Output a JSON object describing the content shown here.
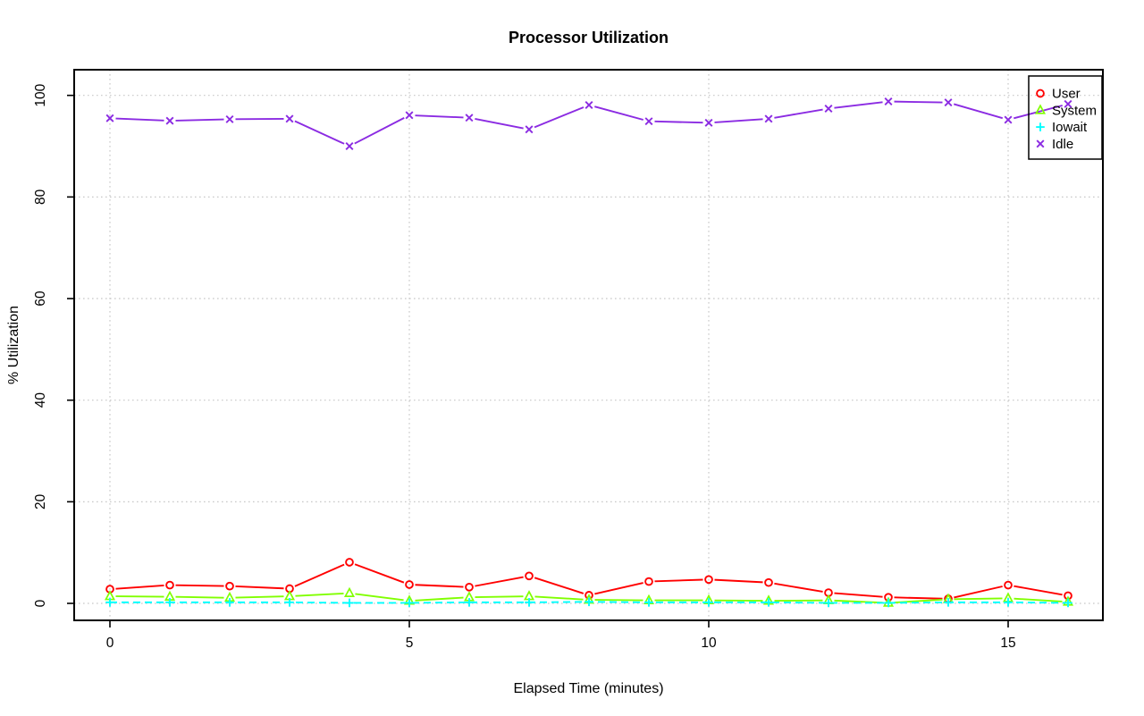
{
  "chart_data": {
    "type": "line",
    "title": "Processor Utilization",
    "xlabel": "Elapsed Time (minutes)",
    "ylabel": "% Utilization",
    "xlim": [
      0,
      16
    ],
    "ylim": [
      0,
      100
    ],
    "xticks": [
      0,
      5,
      10,
      15
    ],
    "yticks": [
      0,
      20,
      40,
      60,
      80,
      100
    ],
    "grid": true,
    "grid_style": "dotted",
    "grid_color": "#C8C8C8",
    "x": [
      0,
      1,
      2,
      3,
      4,
      5,
      6,
      7,
      8,
      9,
      10,
      11,
      12,
      13,
      14,
      15,
      16
    ],
    "series": [
      {
        "name": "User",
        "color": "#FF0000",
        "marker": "circle",
        "linestyle": "solid",
        "values": [
          2.8,
          3.6,
          3.4,
          2.9,
          8.1,
          3.7,
          3.2,
          5.4,
          1.6,
          4.3,
          4.7,
          4.1,
          2.1,
          1.2,
          0.9,
          3.6,
          1.5
        ]
      },
      {
        "name": "System",
        "color": "#80FF00",
        "marker": "triangle",
        "linestyle": "solid",
        "values": [
          1.4,
          1.3,
          1.1,
          1.4,
          2.0,
          0.5,
          1.2,
          1.4,
          0.7,
          0.6,
          0.6,
          0.5,
          0.6,
          0.1,
          0.8,
          1.0,
          0.3
        ]
      },
      {
        "name": "Iowait",
        "color": "#00FFFF",
        "marker": "plus",
        "linestyle": "dashed",
        "values": [
          0.2,
          0.2,
          0.2,
          0.2,
          0.1,
          0.1,
          0.2,
          0.2,
          0.3,
          0.2,
          0.2,
          0.2,
          0.1,
          0.1,
          0.2,
          0.2,
          0.1
        ]
      },
      {
        "name": "Idle",
        "color": "#8B2BE2",
        "marker": "x",
        "linestyle": "solid",
        "values": [
          95.5,
          95.0,
          95.3,
          95.4,
          90.0,
          96.1,
          95.6,
          93.3,
          98.1,
          94.9,
          94.6,
          95.4,
          97.4,
          98.8,
          98.6,
          95.2,
          98.3
        ]
      }
    ],
    "legend": {
      "position": "top-right",
      "entries": [
        "User",
        "System",
        "Iowait",
        "Idle"
      ]
    }
  }
}
